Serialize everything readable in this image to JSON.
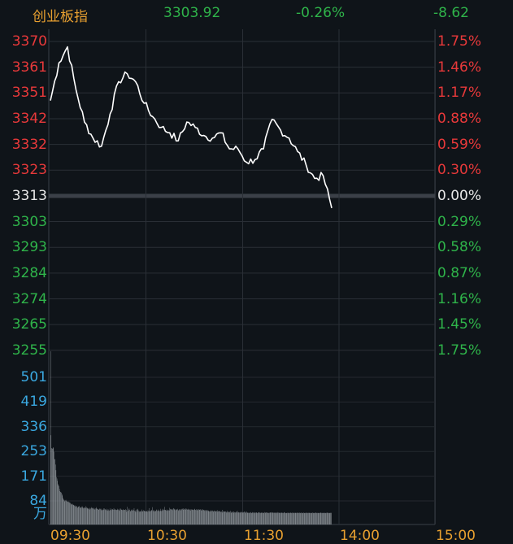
{
  "header": {
    "name": "创业板指",
    "price": "3303.92",
    "change_pct": "-0.26%",
    "change": "-8.62"
  },
  "colors": {
    "up": "#e8393a",
    "down": "#2fb44a",
    "neutral": "#e8e8e8",
    "accent": "#e8a030",
    "volume_axis": "#3aa8e0",
    "line": "#ffffff"
  },
  "chart_data": [
    {
      "type": "line",
      "title": "",
      "xlabel": "",
      "ylabel": "",
      "time_ticks": [
        "09:30",
        "10:30",
        "11:30",
        "14:00",
        "15:00"
      ],
      "price_ticks": [
        "3370",
        "3361",
        "3351",
        "3342",
        "3332",
        "3323",
        "3313",
        "3303",
        "3293",
        "3284",
        "3274",
        "3265",
        "3255"
      ],
      "pct_ticks": [
        "1.75%",
        "1.46%",
        "1.17%",
        "0.88%",
        "0.59%",
        "0.30%",
        "0.00%",
        "0.29%",
        "0.58%",
        "0.87%",
        "1.16%",
        "1.45%",
        "1.75%"
      ],
      "ylim": [
        3255,
        3370
      ],
      "prev_close": 3313,
      "series": [
        {
          "x": [
            "09:30",
            "09:35",
            "09:40",
            "09:45",
            "09:50",
            "09:55",
            "10:00",
            "10:05",
            "10:10",
            "10:15",
            "10:20",
            "10:25",
            "10:30",
            "10:35",
            "10:40",
            "10:45",
            "10:50",
            "10:55",
            "11:00",
            "11:05",
            "11:10",
            "11:15",
            "11:20",
            "11:25",
            "11:30",
            "11:35",
            "11:40",
            "11:45",
            "11:50",
            "11:55",
            "12:00",
            "12:05",
            "12:10",
            "12:15"
          ],
          "values": [
            3348,
            3362,
            3368,
            3352,
            3340,
            3334,
            3331,
            3343,
            3355,
            3358,
            3355,
            3347,
            3342,
            3338,
            3336,
            3333,
            3340,
            3338,
            3335,
            3334,
            3336,
            3330,
            3330,
            3325,
            3326,
            3330,
            3341,
            3337,
            3334,
            3329,
            3324,
            3319,
            3320,
            3308
          ]
        }
      ]
    },
    {
      "type": "bar",
      "title": "",
      "xlabel": "",
      "ylabel": "",
      "unit": "万",
      "y_ticks": [
        "501",
        "419",
        "336",
        "253",
        "171",
        "84"
      ],
      "ylim": [
        0,
        520
      ],
      "values": [
        520,
        268,
        229,
        229,
        227,
        232,
        229,
        218,
        196,
        196,
        180,
        163,
        142,
        138,
        131,
        121,
        118,
        115,
        107,
        100,
        98,
        97,
        95,
        91,
        87,
        80,
        76,
        74,
        72,
        69,
        72,
        74,
        71,
        69,
        69,
        68,
        69,
        67,
        67,
        65,
        65,
        63,
        61,
        60,
        59,
        62,
        59,
        58,
        56,
        58,
        55,
        53,
        55,
        56,
        52,
        50,
        54,
        53,
        56,
        52,
        51,
        49,
        52,
        53,
        55,
        51,
        50,
        48,
        51,
        49,
        51,
        55,
        49,
        52,
        50,
        48,
        47,
        49,
        46,
        45,
        50,
        47,
        49,
        52,
        50,
        48,
        48,
        46,
        50,
        47,
        44,
        48,
        48,
        52,
        47,
        47,
        46,
        44,
        45,
        47,
        48,
        46,
        43,
        47,
        44,
        42,
        45,
        48,
        44,
        48,
        45,
        46,
        43,
        43,
        47,
        45,
        41,
        45,
        41,
        42,
        48,
        44,
        42,
        44,
        47,
        46,
        45,
        44,
        49,
        45,
        46,
        44,
        45,
        43,
        44,
        47,
        44,
        45,
        45,
        41,
        43,
        48,
        47,
        44,
        45,
        44,
        42,
        46,
        44,
        44,
        44,
        43,
        46,
        44,
        38,
        53,
        40,
        42,
        45,
        48,
        44,
        40,
        40,
        43,
        45,
        41,
        45,
        42,
        43,
        49,
        41,
        42,
        38,
        43,
        37,
        46,
        43,
        47,
        42,
        37,
        40,
        39,
        40,
        38,
        41,
        45,
        39,
        40,
        43,
        41,
        41,
        39,
        39,
        41,
        40,
        39,
        38,
        43,
        40,
        40,
        49,
        39,
        42,
        40,
        43,
        43,
        52,
        40,
        43,
        40,
        43,
        39,
        40,
        41,
        45,
        43,
        40,
        41,
        45,
        41,
        43,
        39,
        47,
        41,
        40,
        42,
        45,
        41,
        47,
        44,
        44,
        53,
        44,
        43,
        42,
        45,
        41,
        44,
        41,
        43,
        42,
        50,
        46,
        47,
        45,
        45,
        46,
        43,
        47,
        49,
        45,
        47,
        43,
        46,
        43,
        46,
        44,
        47,
        44,
        41,
        46,
        43,
        45,
        46,
        42,
        45,
        47,
        47,
        44,
        48,
        45,
        47,
        46,
        48,
        44,
        47,
        45,
        45,
        47,
        44,
        46,
        43,
        45,
        42,
        46,
        45,
        46,
        44,
        44,
        43,
        45,
        45,
        47,
        44,
        43,
        46,
        42,
        44,
        46,
        46,
        43,
        44,
        45,
        46,
        44,
        42,
        46,
        42,
        45,
        43,
        44,
        41,
        44,
        43,
        42,
        40,
        44,
        43,
        41,
        40,
        42,
        39,
        40,
        40,
        43,
        39,
        41,
        40,
        42,
        40,
        38,
        41,
        42,
        40,
        39,
        39,
        41,
        38,
        43,
        40,
        39,
        41,
        40,
        39,
        38,
        37,
        39,
        44,
        36,
        40,
        38,
        38,
        39,
        39,
        39,
        38,
        36,
        41,
        37,
        36,
        39,
        37,
        38,
        36,
        41,
        38,
        35,
        36,
        38,
        38,
        35,
        39,
        37,
        36,
        36,
        39,
        37,
        35,
        41,
        37,
        36,
        37,
        36,
        35,
        37,
        38,
        36,
        37,
        35,
        37,
        36,
        37,
        39,
        37,
        36,
        34,
        39,
        37,
        36,
        35,
        35,
        36,
        34,
        36,
        35,
        37,
        34,
        35,
        37,
        35,
        36,
        34,
        37,
        36,
        34,
        36,
        36,
        36,
        34,
        35,
        36,
        37,
        36,
        35,
        36,
        34,
        35,
        36,
        35,
        36,
        35,
        35,
        34,
        37,
        36,
        35,
        36,
        36,
        36,
        35,
        35,
        34,
        36,
        35,
        36,
        36,
        35,
        36,
        37,
        35,
        36,
        35,
        36,
        35,
        36,
        34,
        36,
        34,
        36,
        37,
        34,
        36,
        35,
        35,
        35,
        36,
        34,
        36,
        35,
        35,
        35,
        34,
        37,
        36,
        35,
        35,
        34,
        35,
        34,
        35,
        36,
        34,
        35,
        35,
        34,
        36,
        35,
        35,
        34,
        36,
        34,
        35,
        35,
        36,
        34,
        35,
        35,
        35,
        34,
        36,
        35,
        35,
        35,
        34,
        36,
        35,
        34,
        36,
        34,
        35,
        35,
        34,
        36,
        35,
        34,
        35,
        35,
        34,
        35,
        36,
        34,
        35,
        35,
        35,
        35,
        34,
        35,
        35,
        34,
        35,
        36,
        34,
        35,
        35,
        34,
        35,
        35,
        36,
        35,
        34,
        35,
        34,
        35,
        35,
        35,
        34,
        36,
        35,
        35,
        34,
        35,
        35,
        35,
        34,
        35,
        35,
        34,
        35,
        35,
        35,
        36,
        34,
        35,
        35,
        35,
        34,
        35,
        35,
        35
      ]
    }
  ]
}
